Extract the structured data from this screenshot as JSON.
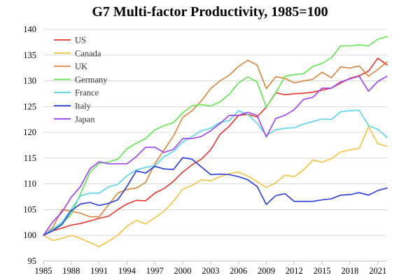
{
  "chart_data": {
    "type": "line",
    "title": "G7 Multi-factor Productivity, 1985=100",
    "xlabel": "",
    "ylabel": "",
    "xlim": [
      1985,
      2022
    ],
    "ylim": [
      95,
      140
    ],
    "xticks": [
      1985,
      1988,
      1991,
      1994,
      1997,
      2000,
      2003,
      2006,
      2009,
      2012,
      2015,
      2018,
      2021
    ],
    "yticks": [
      95,
      100,
      105,
      110,
      115,
      120,
      125,
      130,
      135,
      140
    ],
    "grid": "horizontal",
    "legend_position": "top-left",
    "x": [
      1985,
      1986,
      1987,
      1988,
      1989,
      1990,
      1991,
      1992,
      1993,
      1994,
      1995,
      1996,
      1997,
      1998,
      1999,
      2000,
      2001,
      2002,
      2003,
      2004,
      2005,
      2006,
      2007,
      2008,
      2009,
      2010,
      2011,
      2012,
      2013,
      2014,
      2015,
      2016,
      2017,
      2018,
      2019,
      2020,
      2021,
      2022
    ],
    "series": [
      {
        "name": "US",
        "color": "#e8332b",
        "values": [
          100,
          100.9,
          101.4,
          102.0,
          102.3,
          102.8,
          103.3,
          103.7,
          105.0,
          106.1,
          106.8,
          106.7,
          108.2,
          109.1,
          110.5,
          112.3,
          113.7,
          114.8,
          116.6,
          119.6,
          121.2,
          123.3,
          123.5,
          123.0,
          124.9,
          127.7,
          127.3,
          127.5,
          127.6,
          127.8,
          128.2,
          128.6,
          129.6,
          130.5,
          131.0,
          131.9,
          134.4,
          133.1
        ]
      },
      {
        "name": "Canada",
        "color": "#f5c242",
        "values": [
          100,
          99.0,
          99.4,
          100.0,
          99.4,
          98.6,
          97.8,
          98.8,
          100.0,
          101.8,
          102.9,
          102.2,
          103.4,
          104.7,
          106.6,
          109.0,
          109.7,
          110.8,
          110.6,
          111.4,
          112.0,
          112.3,
          111.5,
          110.4,
          109.3,
          110.2,
          111.7,
          111.4,
          112.7,
          114.6,
          114.2,
          114.9,
          116.2,
          116.6,
          116.9,
          121.1,
          117.8,
          117.3
        ]
      },
      {
        "name": "UK",
        "color": "#d9853b",
        "values": [
          100,
          101.5,
          105.0,
          104.7,
          104.3,
          103.6,
          103.6,
          105.9,
          108.2,
          108.9,
          109.2,
          110.3,
          113.9,
          116.6,
          119.3,
          122.9,
          124.2,
          126.1,
          128.5,
          130.0,
          131.1,
          132.8,
          134.0,
          133.1,
          128.5,
          130.8,
          130.5,
          129.6,
          130.0,
          130.3,
          131.7,
          130.6,
          132.7,
          132.5,
          132.9,
          130.9,
          132.2,
          133.7
        ]
      },
      {
        "name": "Germany",
        "color": "#5ee64c",
        "values": [
          100,
          101.1,
          102.3,
          104.1,
          108.1,
          112.2,
          114.0,
          114.2,
          114.8,
          116.8,
          117.9,
          118.8,
          120.5,
          121.3,
          121.9,
          123.8,
          125.2,
          125.4,
          125.1,
          125.9,
          127.4,
          129.6,
          130.8,
          129.8,
          124.9,
          127.6,
          130.9,
          131.2,
          131.4,
          132.8,
          133.4,
          134.5,
          136.8,
          136.8,
          137.0,
          136.8,
          138.1,
          138.6
        ]
      },
      {
        "name": "France",
        "color": "#57d4ec",
        "values": [
          100,
          101.2,
          102.5,
          105.1,
          107.7,
          108.2,
          108.2,
          109.4,
          109.9,
          111.6,
          112.7,
          113.2,
          113.5,
          115.3,
          116.3,
          118.1,
          119.2,
          120.3,
          120.8,
          121.9,
          122.3,
          124.2,
          123.5,
          121.8,
          119.4,
          120.5,
          120.8,
          120.9,
          121.6,
          122.1,
          122.6,
          122.5,
          124.0,
          124.2,
          124.3,
          121.3,
          120.6,
          119.0
        ]
      },
      {
        "name": "Italy",
        "color": "#2a39d9",
        "values": [
          100,
          100.9,
          102.1,
          104.8,
          106.1,
          106.4,
          105.8,
          106.2,
          106.9,
          109.5,
          112.5,
          112.1,
          113.4,
          112.9,
          112.8,
          115.1,
          114.8,
          113.3,
          111.8,
          111.9,
          111.8,
          111.4,
          110.8,
          109.5,
          106.0,
          107.7,
          108.1,
          106.6,
          106.6,
          106.6,
          106.9,
          107.1,
          107.8,
          107.9,
          108.3,
          107.8,
          108.7,
          109.2
        ]
      },
      {
        "name": "Japan",
        "color": "#9b3ef0",
        "values": [
          100,
          102.6,
          104.5,
          107.4,
          109.5,
          112.9,
          114.3,
          113.9,
          113.9,
          113.9,
          115.3,
          117.1,
          117.1,
          116.1,
          116.7,
          118.8,
          118.8,
          119.2,
          120.3,
          121.7,
          123.3,
          123.3,
          123.9,
          123.3,
          119.1,
          122.7,
          123.3,
          124.4,
          126.4,
          126.8,
          128.6,
          128.6,
          129.8,
          130.4,
          130.9,
          128.0,
          129.9,
          130.9
        ]
      }
    ]
  }
}
